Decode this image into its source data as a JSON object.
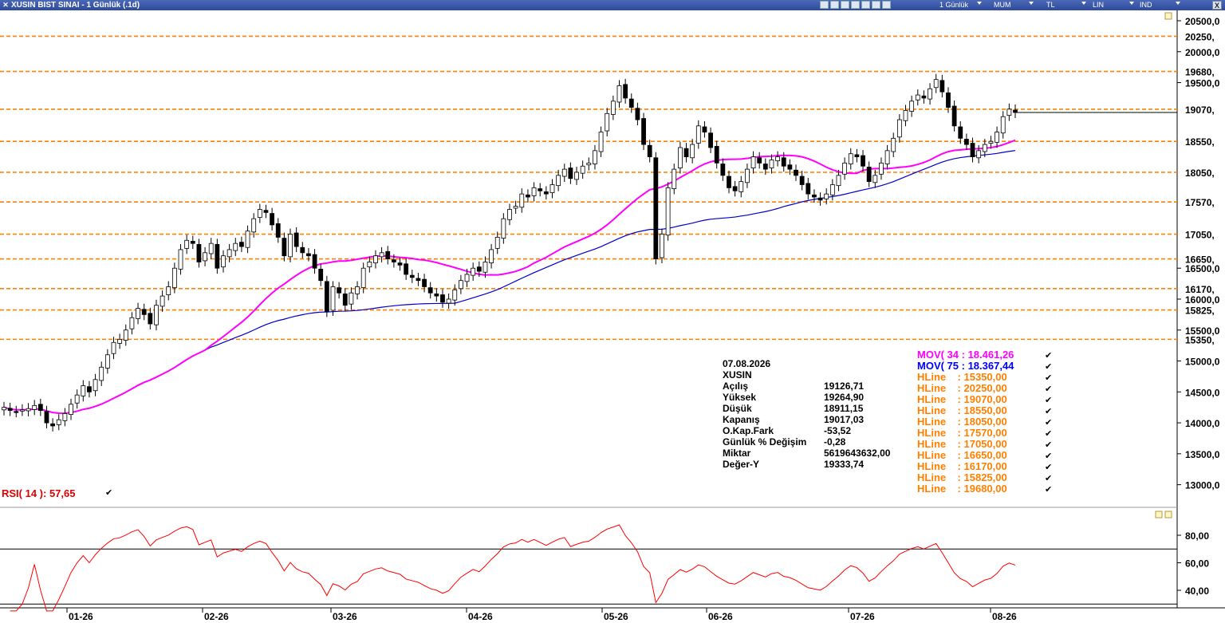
{
  "window": {
    "title": "XUSIN BIST SINAI - 1 Günlük (.1d)",
    "menu": [
      "1 Günlük",
      "MUM",
      "TL",
      "LIN",
      "IND"
    ],
    "close_label": "X"
  },
  "info_panel": {
    "date": "07.08.2026",
    "symbol": "XUSIN",
    "rows": [
      {
        "label": "Açılış",
        "value": "19126,71"
      },
      {
        "label": "Yüksek",
        "value": "19264,90"
      },
      {
        "label": "Düşük",
        "value": "18911,15"
      },
      {
        "label": "Kapanış",
        "value": "19017,03"
      },
      {
        "label": "O.Kap.Fark",
        "value": "-53,52"
      },
      {
        "label": "Günlük % Değişim",
        "value": "-0,28"
      },
      {
        "label": "Miktar",
        "value": "5619643632,00"
      },
      {
        "label": "Değer-Y",
        "value": "19333,74"
      }
    ]
  },
  "legend": [
    {
      "text": "MOV( 34 : 18.461,26",
      "color": "#ff00ff"
    },
    {
      "text": "MOV( 75 : 18.367,44",
      "color": "#0000ff"
    },
    {
      "text": "HLine    : 15350,00",
      "color": "#ff8000"
    },
    {
      "text": "HLine    : 20250,00",
      "color": "#ff8000"
    },
    {
      "text": "HLine    : 19070,00",
      "color": "#ff8000"
    },
    {
      "text": "HLine    : 18550,00",
      "color": "#ff8000"
    },
    {
      "text": "HLine    : 18050,00",
      "color": "#ff8000"
    },
    {
      "text": "HLine    : 17570,00",
      "color": "#ff8000"
    },
    {
      "text": "HLine    : 17050,00",
      "color": "#ff8000"
    },
    {
      "text": "HLine    : 16650,00",
      "color": "#ff8000"
    },
    {
      "text": "HLine    : 16170,00",
      "color": "#ff8000"
    },
    {
      "text": "HLine    : 15825,00",
      "color": "#ff8000"
    },
    {
      "text": "HLine    : 19680,00",
      "color": "#ff8000"
    }
  ],
  "rsi": {
    "label": "RSI( 14 ): 57,65",
    "levels": [
      70,
      30
    ],
    "ticks": [
      "80,00",
      "60,00",
      "40,00"
    ]
  },
  "chart_data": {
    "type": "candlestick",
    "y_ticks": [
      "20500,0",
      "20000,0",
      "19500,0",
      "16500,0",
      "16000,0",
      "15500,0",
      "15000,0",
      "14500,0",
      "14000,0",
      "13500,0",
      "13000,0"
    ],
    "y_tick_values": [
      20500,
      20000,
      19500,
      16500,
      16000,
      15500,
      15000,
      14500,
      14000,
      13500,
      13000
    ],
    "hlines": [
      20250,
      19680,
      19070,
      18550,
      18050,
      17570,
      17050,
      16650,
      16170,
      15825,
      15350
    ],
    "hline_labels": [
      "20250,",
      "19680,",
      "19070,",
      "18550,",
      "18050,",
      "17570,",
      "17050,",
      "16650,",
      "16170,",
      "15825,",
      "15350,"
    ],
    "x_labels": [
      "01-26",
      "02-26",
      "03-26",
      "04-26",
      "05-26",
      "06-26",
      "07-26",
      "08-26"
    ],
    "last_close": 19017,
    "closes": [
      14250,
      14200,
      14180,
      14210,
      14230,
      14280,
      14200,
      14000,
      13950,
      14050,
      14150,
      14300,
      14450,
      14600,
      14500,
      14700,
      14900,
      15100,
      15300,
      15350,
      15500,
      15700,
      15850,
      15750,
      15600,
      15900,
      16050,
      16200,
      16500,
      16800,
      16950,
      16900,
      16600,
      16750,
      16900,
      16500,
      16700,
      16800,
      16900,
      16850,
      17100,
      17300,
      17450,
      17400,
      17200,
      17000,
      16700,
      17050,
      16850,
      16750,
      16700,
      16500,
      16300,
      15800,
      16200,
      16100,
      15900,
      16100,
      16200,
      16500,
      16600,
      16700,
      16750,
      16650,
      16600,
      16550,
      16400,
      16350,
      16300,
      16200,
      16100,
      16050,
      15950,
      16000,
      16150,
      16300,
      16400,
      16500,
      16450,
      16600,
      16800,
      17000,
      17300,
      17450,
      17500,
      17700,
      17650,
      17800,
      17750,
      17700,
      17850,
      18000,
      18100,
      17950,
      18050,
      18150,
      18200,
      18400,
      18700,
      19000,
      19200,
      19450,
      19250,
      19100,
      18900,
      18500,
      18300,
      16650,
      17050,
      17800,
      18100,
      18450,
      18300,
      18500,
      18800,
      18700,
      18450,
      18200,
      18000,
      17800,
      17750,
      17900,
      18100,
      18300,
      18200,
      18100,
      18250,
      18300,
      18150,
      18100,
      18000,
      17850,
      17700,
      17650,
      17600,
      17700,
      17850,
      18000,
      18200,
      18350,
      18300,
      18150,
      17900,
      18000,
      18200,
      18400,
      18600,
      18900,
      19050,
      19200,
      19300,
      19250,
      19400,
      19550,
      19350,
      19100,
      18800,
      18600,
      18500,
      18300,
      18400,
      18500,
      18550,
      18700,
      18950,
      19071,
      19017
    ]
  }
}
